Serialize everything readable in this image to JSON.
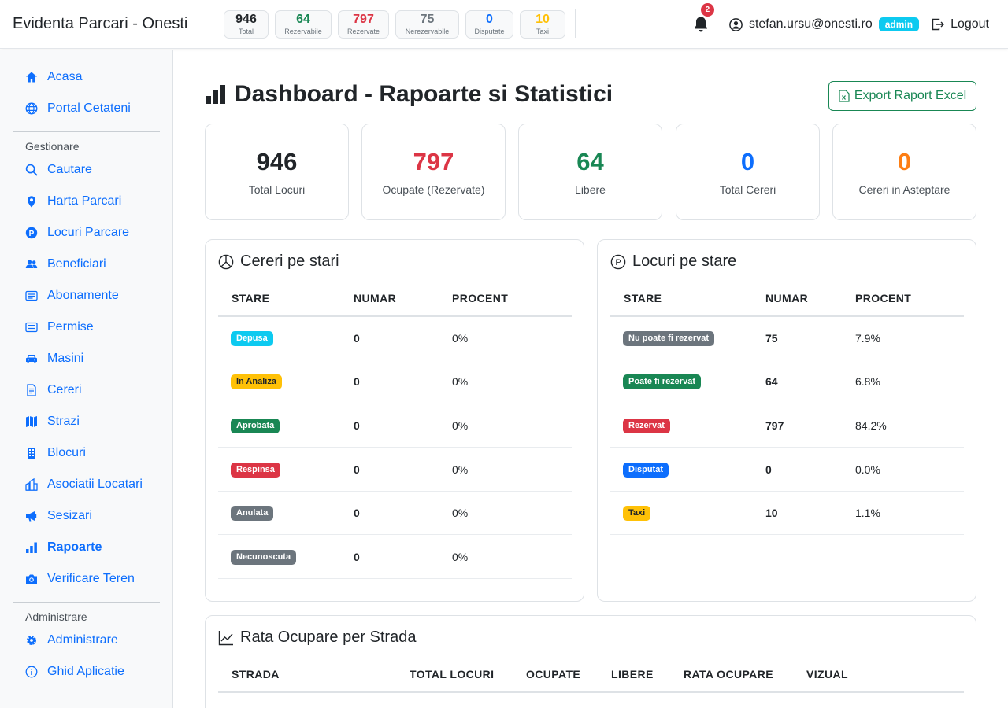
{
  "app": {
    "title": "Evidenta Parcari - Onesti"
  },
  "topstats": [
    {
      "value": "946",
      "label": "Total",
      "color": "#212529"
    },
    {
      "value": "64",
      "label": "Rezervabile",
      "color": "#198754"
    },
    {
      "value": "797",
      "label": "Rezervate",
      "color": "#dc3545"
    },
    {
      "value": "75",
      "label": "Nerezervabile",
      "color": "#6c757d"
    },
    {
      "value": "0",
      "label": "Disputate",
      "color": "#0d6efd"
    },
    {
      "value": "10",
      "label": "Taxi",
      "color": "#ffc107"
    }
  ],
  "header": {
    "notifications_count": "2",
    "user_email": "stefan.ursu@onesti.ro",
    "role_badge": "admin",
    "logout_label": "Logout",
    "icons": {
      "bell": "bell-icon",
      "user": "user-circle-icon",
      "logout": "logout-icon"
    }
  },
  "sidebar": {
    "items_top": [
      {
        "label": "Acasa",
        "icon": "home-icon"
      },
      {
        "label": "Portal Cetateni",
        "icon": "globe-icon"
      }
    ],
    "section_manage": "Gestionare",
    "items_manage": [
      {
        "label": "Cautare",
        "icon": "search-icon"
      },
      {
        "label": "Harta Parcari",
        "icon": "map-pin-icon"
      },
      {
        "label": "Locuri Parcare",
        "icon": "parking-icon"
      },
      {
        "label": "Beneficiari",
        "icon": "people-icon"
      },
      {
        "label": "Abonamente",
        "icon": "card-icon"
      },
      {
        "label": "Permise",
        "icon": "permit-icon"
      },
      {
        "label": "Masini",
        "icon": "car-icon"
      },
      {
        "label": "Cereri",
        "icon": "document-icon"
      },
      {
        "label": "Strazi",
        "icon": "map-icon"
      },
      {
        "label": "Blocuri",
        "icon": "building-icon"
      },
      {
        "label": "Asociatii Locatari",
        "icon": "buildings-icon"
      },
      {
        "label": "Sesizari",
        "icon": "megaphone-icon"
      },
      {
        "label": "Rapoarte",
        "icon": "bar-chart-icon",
        "active": true
      },
      {
        "label": "Verificare Teren",
        "icon": "camera-icon"
      }
    ],
    "section_admin": "Administrare",
    "items_admin": [
      {
        "label": "Administrare",
        "icon": "gear-icon"
      },
      {
        "label": "Ghid Aplicatie",
        "icon": "info-icon"
      }
    ]
  },
  "main": {
    "page_title": "Dashboard - Rapoarte si Statistici",
    "export_label": "Export Raport Excel",
    "kpis": [
      {
        "value": "946",
        "label": "Total Locuri",
        "color": "#212529"
      },
      {
        "value": "797",
        "label": "Ocupate (Rezervate)",
        "color": "#dc3545"
      },
      {
        "value": "64",
        "label": "Libere",
        "color": "#198754"
      },
      {
        "value": "0",
        "label": "Total Cereri",
        "color": "#0d6efd"
      },
      {
        "value": "0",
        "label": "Cereri in Asteptare",
        "color": "#fd7e14"
      }
    ],
    "cereri": {
      "title": "Cereri pe stari",
      "headers": [
        "STARE",
        "NUMAR",
        "PROCENT"
      ],
      "rows": [
        {
          "stare": "Depusa",
          "color": "#0dcaf0",
          "text_color": "#ffffff",
          "numar": "0",
          "procent": "0%"
        },
        {
          "stare": "In Analiza",
          "color": "#ffc107",
          "text_color": "#212529",
          "numar": "0",
          "procent": "0%"
        },
        {
          "stare": "Aprobata",
          "color": "#198754",
          "text_color": "#ffffff",
          "numar": "0",
          "procent": "0%"
        },
        {
          "stare": "Respinsa",
          "color": "#dc3545",
          "text_color": "#ffffff",
          "numar": "0",
          "procent": "0%"
        },
        {
          "stare": "Anulata",
          "color": "#6c757d",
          "text_color": "#ffffff",
          "numar": "0",
          "procent": "0%"
        },
        {
          "stare": "Necunoscuta",
          "color": "#6c757d",
          "text_color": "#ffffff",
          "numar": "0",
          "procent": "0%"
        }
      ]
    },
    "locuri": {
      "title": "Locuri pe stare",
      "headers": [
        "STARE",
        "NUMAR",
        "PROCENT"
      ],
      "rows": [
        {
          "stare": "Nu poate fi rezervat",
          "color": "#6c757d",
          "text_color": "#ffffff",
          "numar": "75",
          "procent": "7.9%"
        },
        {
          "stare": "Poate fi rezervat",
          "color": "#198754",
          "text_color": "#ffffff",
          "numar": "64",
          "procent": "6.8%"
        },
        {
          "stare": "Rezervat",
          "color": "#dc3545",
          "text_color": "#ffffff",
          "numar": "797",
          "procent": "84.2%"
        },
        {
          "stare": "Disputat",
          "color": "#0d6efd",
          "text_color": "#ffffff",
          "numar": "0",
          "procent": "0.0%"
        },
        {
          "stare": "Taxi",
          "color": "#ffc107",
          "text_color": "#212529",
          "numar": "10",
          "procent": "1.1%"
        }
      ]
    },
    "rata": {
      "title": "Rata Ocupare per Strada",
      "headers": [
        "STRADA",
        "TOTAL LOCURI",
        "OCUPATE",
        "LIBERE",
        "RATA OCUPARE",
        "VIZUAL"
      ]
    }
  }
}
